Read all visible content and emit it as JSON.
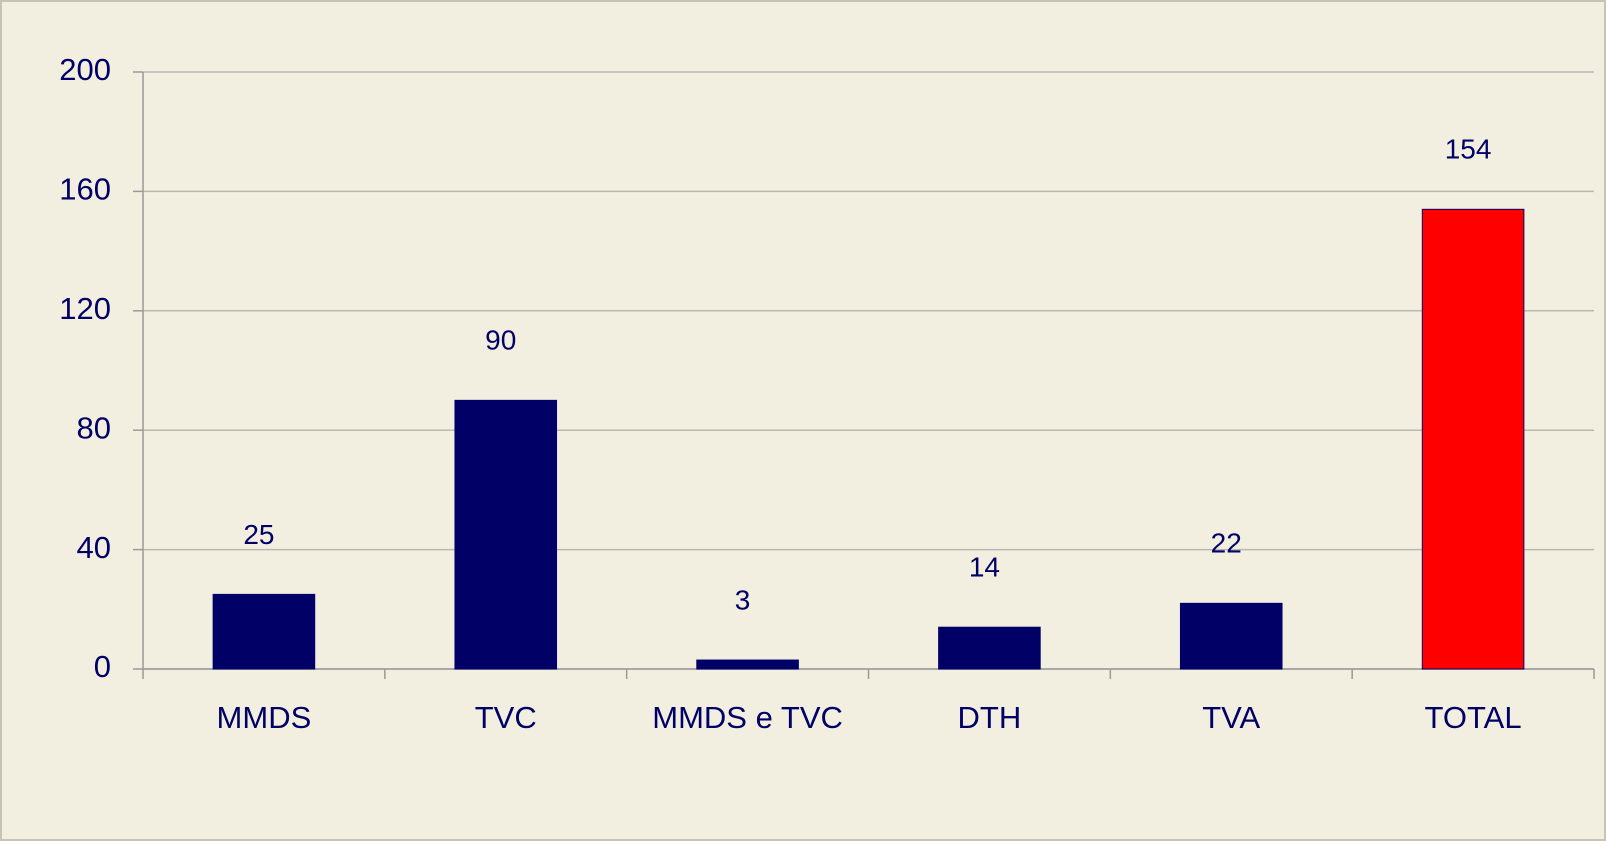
{
  "chart_data": {
    "type": "bar",
    "categories": [
      "MMDS",
      "TVC",
      "MMDS e TVC",
      "DTH",
      "TVA",
      "TOTAL"
    ],
    "values": [
      25,
      90,
      3,
      14,
      22,
      154
    ],
    "colors": [
      "#000066",
      "#000066",
      "#000066",
      "#000066",
      "#000066",
      "#ff0000"
    ],
    "ylim": [
      0,
      200
    ],
    "yticks": [
      0,
      40,
      80,
      120,
      160,
      200
    ],
    "grid": true
  }
}
